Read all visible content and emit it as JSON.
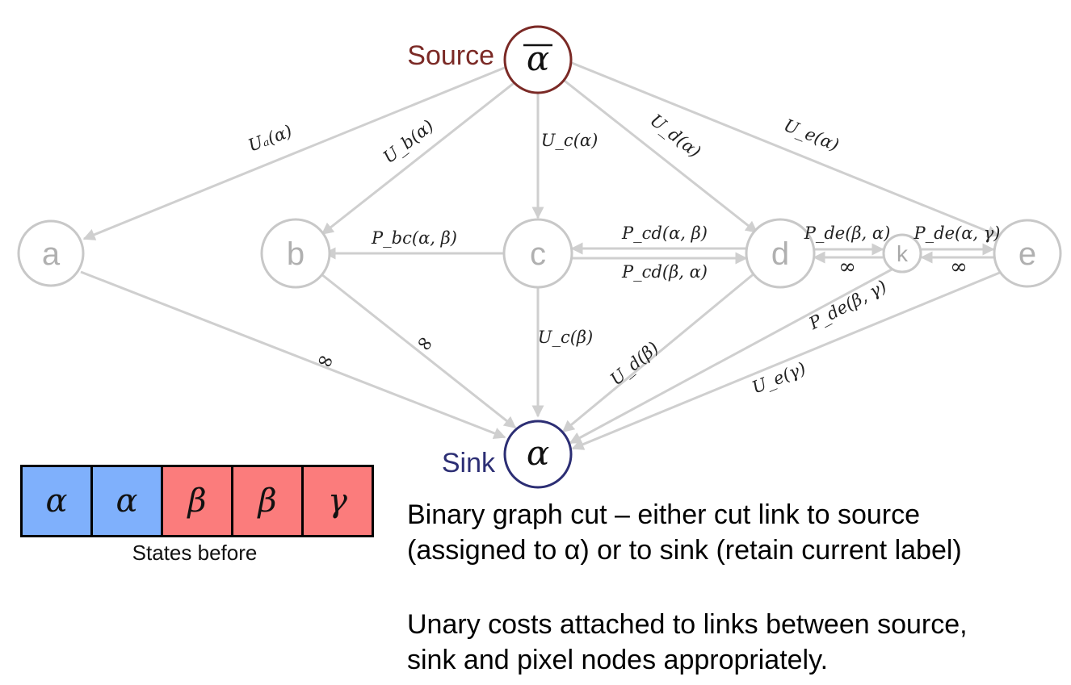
{
  "source": {
    "label": "Source",
    "symbol": "α",
    "color": "#7b2a26"
  },
  "sink": {
    "label": "Sink",
    "symbol": "α",
    "color": "#2c2e74"
  },
  "nodes": {
    "a": "a",
    "b": "b",
    "c": "c",
    "d": "d",
    "k": "k",
    "e": "e"
  },
  "edge_labels": {
    "Ua_alpha": "Uₐ(α)",
    "Ub_alpha": "U_b(α)",
    "Uc_alpha": "U_c(α)",
    "Ud_alpha": "U_d(α)",
    "Ue_alpha": "U_e(α)",
    "Pbc_ab": "P_bc(α, β)",
    "Pcd_ab": "P_cd(α, β)",
    "Pcd_ba": "P_cd(β, α)",
    "Pde_ba": "P_de(β, α)",
    "Pde_ag": "P_de(α, γ)",
    "inf_dk": "∞",
    "inf_ke": "∞",
    "Pde_bg": "P_de(β, γ)",
    "inf_a": "∞",
    "inf_b": "∞",
    "Uc_beta": "U_c(β)",
    "Ud_beta": "U_d(β)",
    "Ue_gamma": "U_e(γ)"
  },
  "states_before": {
    "cells": [
      {
        "symbol": "α",
        "color": "#7fb0fc"
      },
      {
        "symbol": "α",
        "color": "#7fb0fc"
      },
      {
        "symbol": "β",
        "color": "#fb7c7c"
      },
      {
        "symbol": "β",
        "color": "#fb7c7c"
      },
      {
        "symbol": "γ",
        "color": "#fb7c7c"
      }
    ],
    "caption": "States before"
  },
  "notes": {
    "line1": "Binary graph cut – either cut link to source",
    "line2": "(assigned to α) or to sink (retain current label)",
    "line3": "Unary costs attached to links between source,",
    "line4": "sink and pixel nodes appropriately."
  }
}
